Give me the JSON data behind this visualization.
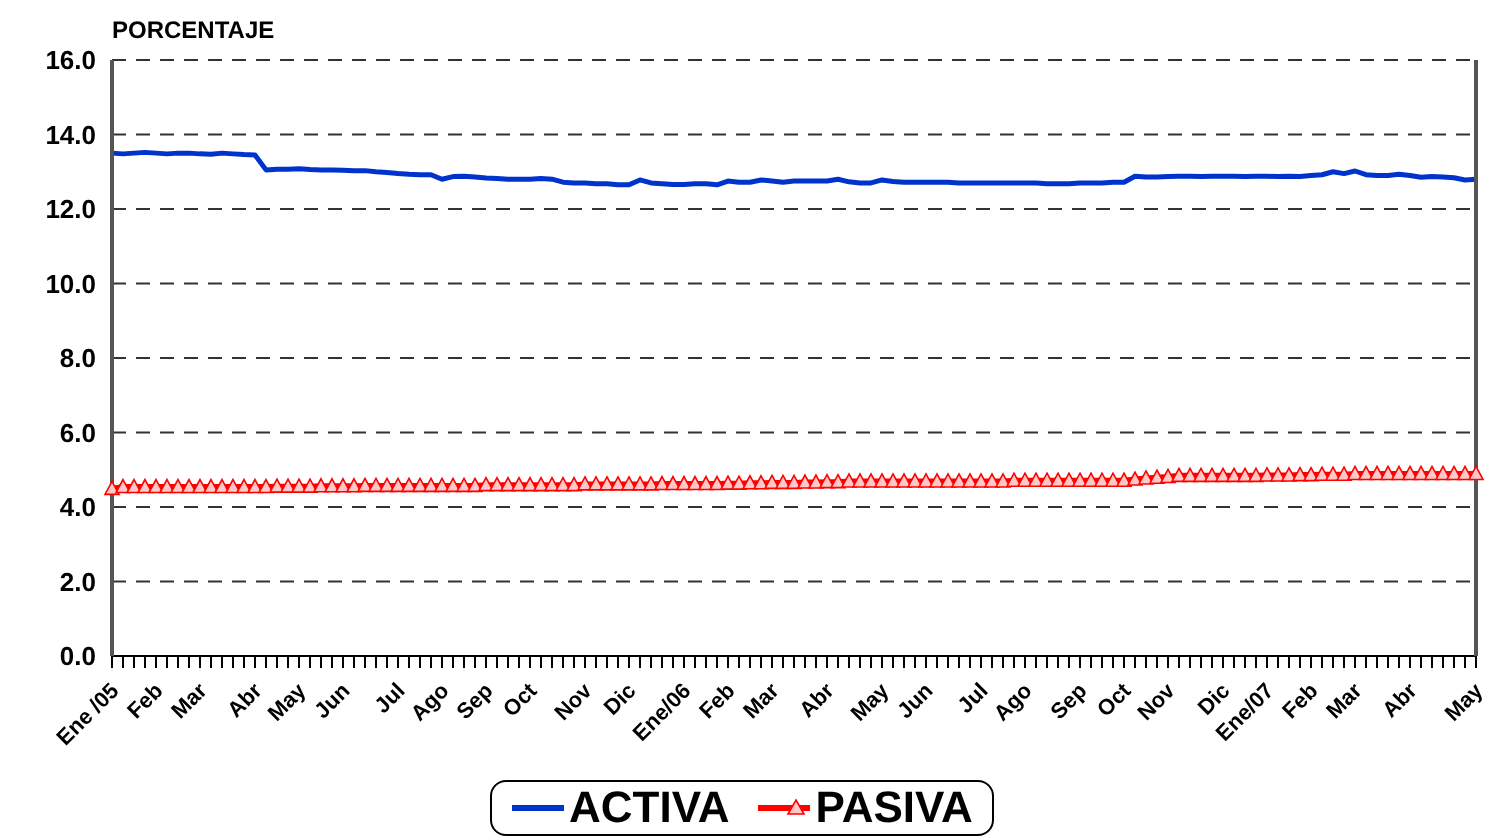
{
  "chart_data": {
    "type": "line",
    "ylabel": "PORCENTAJE",
    "categories": [
      "Ene /05",
      null,
      null,
      null,
      "Feb",
      null,
      null,
      null,
      "Mar",
      null,
      null,
      null,
      null,
      "Abr",
      null,
      null,
      null,
      "May",
      null,
      null,
      null,
      "Jun",
      null,
      null,
      null,
      null,
      "Jul",
      null,
      null,
      null,
      "Ago",
      null,
      null,
      null,
      "Sep",
      null,
      null,
      null,
      "Oct",
      null,
      null,
      null,
      null,
      "Nov",
      null,
      null,
      null,
      "Dic",
      null,
      null,
      null,
      null,
      "Ene/06",
      null,
      null,
      null,
      "Feb",
      null,
      null,
      null,
      "Mar",
      null,
      null,
      null,
      null,
      "Abr",
      null,
      null,
      null,
      null,
      "May",
      null,
      null,
      null,
      "Jun",
      null,
      null,
      null,
      null,
      "Jul",
      null,
      null,
      null,
      "Ago",
      null,
      null,
      null,
      null,
      "Sep",
      null,
      null,
      null,
      "Oct",
      null,
      null,
      null,
      "Nov",
      null,
      null,
      null,
      null,
      "Dic",
      null,
      null,
      null,
      "Ene/07",
      null,
      null,
      null,
      "Feb",
      null,
      null,
      null,
      "Mar",
      null,
      null,
      null,
      null,
      "Abr",
      null,
      null,
      null,
      null,
      null,
      "May"
    ],
    "series": [
      {
        "name": "ACTIVA",
        "color": "#0033cc",
        "marker": "none",
        "values": [
          13.5,
          13.48,
          13.5,
          13.52,
          13.5,
          13.48,
          13.5,
          13.5,
          13.48,
          13.47,
          13.5,
          13.48,
          13.46,
          13.45,
          13.05,
          13.07,
          13.07,
          13.08,
          13.06,
          13.05,
          13.05,
          13.04,
          13.03,
          13.03,
          13.0,
          12.98,
          12.95,
          12.93,
          12.92,
          12.92,
          12.8,
          12.87,
          12.88,
          12.86,
          12.83,
          12.82,
          12.8,
          12.8,
          12.8,
          12.82,
          12.8,
          12.72,
          12.7,
          12.7,
          12.68,
          12.68,
          12.65,
          12.65,
          12.78,
          12.7,
          12.68,
          12.66,
          12.66,
          12.68,
          12.68,
          12.65,
          12.75,
          12.72,
          12.72,
          12.78,
          12.75,
          12.72,
          12.75,
          12.75,
          12.75,
          12.75,
          12.8,
          12.73,
          12.7,
          12.7,
          12.78,
          12.74,
          12.72,
          12.72,
          12.72,
          12.72,
          12.72,
          12.7,
          12.7,
          12.7,
          12.7,
          12.7,
          12.7,
          12.7,
          12.7,
          12.68,
          12.68,
          12.68,
          12.7,
          12.7,
          12.7,
          12.72,
          12.72,
          12.88,
          12.86,
          12.86,
          12.87,
          12.88,
          12.88,
          12.87,
          12.88,
          12.88,
          12.88,
          12.87,
          12.88,
          12.88,
          12.87,
          12.88,
          12.87,
          12.9,
          12.92,
          13.0,
          12.95,
          13.02,
          12.92,
          12.9,
          12.9,
          12.93,
          12.9,
          12.85,
          12.87,
          12.86,
          12.84,
          12.78,
          12.8
        ]
      },
      {
        "name": "PASIVA",
        "color": "#ff0000",
        "marker": "triangle",
        "values": [
          4.5,
          4.55,
          4.55,
          4.55,
          4.55,
          4.55,
          4.55,
          4.55,
          4.55,
          4.55,
          4.55,
          4.55,
          4.55,
          4.55,
          4.55,
          4.56,
          4.56,
          4.56,
          4.56,
          4.57,
          4.57,
          4.57,
          4.57,
          4.58,
          4.58,
          4.58,
          4.58,
          4.58,
          4.58,
          4.58,
          4.58,
          4.58,
          4.58,
          4.58,
          4.6,
          4.6,
          4.6,
          4.6,
          4.6,
          4.6,
          4.6,
          4.6,
          4.6,
          4.62,
          4.62,
          4.62,
          4.62,
          4.62,
          4.62,
          4.62,
          4.63,
          4.63,
          4.63,
          4.63,
          4.63,
          4.63,
          4.64,
          4.64,
          4.65,
          4.65,
          4.66,
          4.66,
          4.66,
          4.67,
          4.67,
          4.68,
          4.68,
          4.7,
          4.7,
          4.7,
          4.7,
          4.7,
          4.7,
          4.7,
          4.7,
          4.7,
          4.7,
          4.7,
          4.7,
          4.7,
          4.7,
          4.7,
          4.72,
          4.72,
          4.72,
          4.72,
          4.72,
          4.72,
          4.72,
          4.72,
          4.72,
          4.72,
          4.72,
          4.75,
          4.78,
          4.8,
          4.82,
          4.85,
          4.85,
          4.85,
          4.85,
          4.85,
          4.85,
          4.85,
          4.85,
          4.86,
          4.86,
          4.86,
          4.87,
          4.87,
          4.88,
          4.88,
          4.88,
          4.9,
          4.9,
          4.9,
          4.9,
          4.9,
          4.9,
          4.9,
          4.9,
          4.9,
          4.9,
          4.9,
          4.9
        ]
      }
    ],
    "ylim": [
      0,
      16
    ],
    "yticks": [
      {
        "value": 0,
        "label": "0.0"
      },
      {
        "value": 2,
        "label": "2.0"
      },
      {
        "value": 4,
        "label": "4.0"
      },
      {
        "value": 6,
        "label": "6.0"
      },
      {
        "value": 8,
        "label": "8.0"
      },
      {
        "value": 10,
        "label": "10.0"
      },
      {
        "value": 12,
        "label": "12.0"
      },
      {
        "value": 14,
        "label": "14.0"
      },
      {
        "value": 16,
        "label": "16.0"
      }
    ],
    "grid": "y",
    "legend": "bottom",
    "line_style": "solid"
  }
}
